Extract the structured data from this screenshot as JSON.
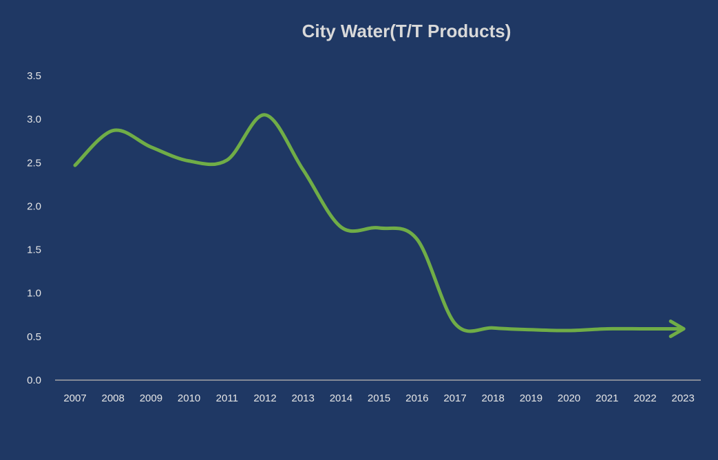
{
  "chart_data": {
    "type": "line",
    "title": "City Water(T/T Products)",
    "xlabel": "",
    "ylabel": "",
    "x": [
      "2007",
      "2008",
      "2009",
      "2010",
      "2011",
      "2012",
      "2013",
      "2014",
      "2015",
      "2016",
      "2017",
      "2018",
      "2019",
      "2020",
      "2021",
      "2022",
      "2023"
    ],
    "series": [
      {
        "values": [
          2.47,
          2.87,
          2.68,
          2.52,
          2.53,
          3.05,
          2.42,
          1.76,
          1.75,
          1.62,
          0.65,
          0.6,
          0.58,
          0.57,
          0.59,
          0.59,
          0.59
        ]
      }
    ],
    "ylim": [
      0,
      3.5
    ],
    "yticks": [
      "0.0",
      "0.5",
      "1.0",
      "1.5",
      "2.0",
      "2.5",
      "3.0",
      "3.5"
    ],
    "grid": false,
    "legend": "none",
    "colors": {
      "background": "#1f3864",
      "line": "#70ad47",
      "axis": "#a6a6a6",
      "text": "#e6e6e6",
      "title": "#d9d9d9"
    }
  }
}
